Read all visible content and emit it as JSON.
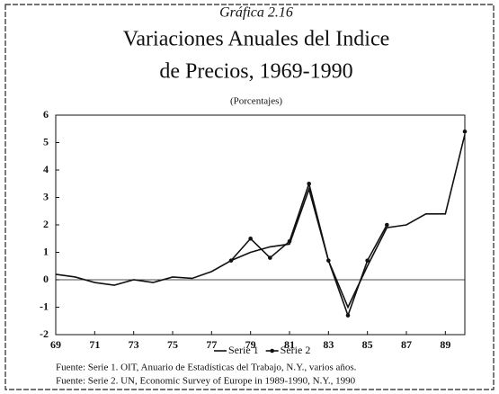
{
  "chart_data": {
    "type": "line",
    "title": "Gráfica 2.16",
    "subtitle_lines": [
      "Variaciones Anuales del Indice",
      "de Precios, 1969-1990"
    ],
    "unit_note": "(Porcentajes)",
    "x": [
      69,
      70,
      71,
      72,
      73,
      74,
      75,
      76,
      77,
      78,
      79,
      80,
      81,
      82,
      83,
      84,
      85,
      86,
      87,
      88,
      89,
      90
    ],
    "series": [
      {
        "name": "Serie 1",
        "color": "#111111",
        "markers": false,
        "values": [
          0.2,
          0.1,
          -0.1,
          -0.2,
          0,
          -0.1,
          0.1,
          0.05,
          0.3,
          0.7,
          1.0,
          1.2,
          1.3,
          3.3,
          0.7,
          -1.0,
          0.5,
          1.9,
          2.0,
          2.4,
          2.4,
          5.3
        ]
      },
      {
        "name": "Serie 2",
        "color": "#111111",
        "markers": true,
        "values": [
          null,
          null,
          null,
          null,
          null,
          null,
          null,
          null,
          null,
          0.7,
          1.5,
          0.8,
          1.4,
          3.5,
          0.7,
          -1.3,
          0.7,
          2.0,
          null,
          null,
          null,
          5.4
        ]
      }
    ],
    "xlim": [
      69,
      90
    ],
    "xticks": [
      69,
      71,
      73,
      75,
      77,
      79,
      81,
      83,
      85,
      87,
      89
    ],
    "ylim": [
      -2,
      6
    ],
    "yticks": [
      -2,
      -1,
      0,
      1,
      2,
      3,
      4,
      5,
      6
    ],
    "legend": "bottom",
    "footnotes": [
      "Fuente: Serie 1. OIT, Anuario de Estadísticas del Trabajo, N.Y., varios años.",
      "Fuente: Serie 2. UN, Economic Survey of Europe in 1989-1990, N.Y., 1990"
    ]
  }
}
